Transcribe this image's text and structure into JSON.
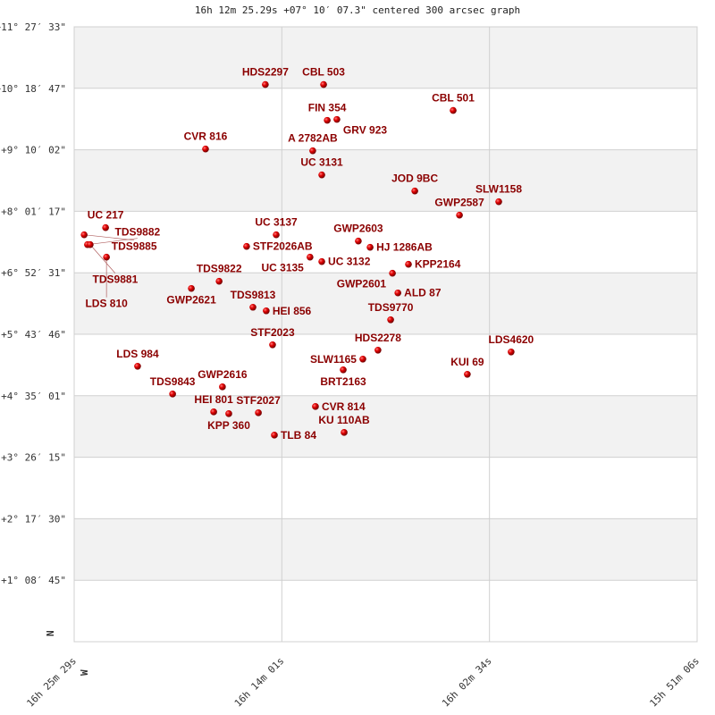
{
  "chart_data": {
    "type": "scatter",
    "title": "16h 12m 25.29s +07° 10′ 07.3\" centered 300 arcsec graph",
    "x_axis": {
      "ticks": [
        "16h 25m 29s",
        "16h 14m 01s",
        "16h 02m 34s",
        "15h 51m 06s"
      ],
      "range": [
        "16h25m29s",
        "15h51m06s"
      ],
      "direction_label": "W"
    },
    "y_axis": {
      "ticks": [
        "+11° 27′ 33\"",
        "+10° 18′ 47\"",
        "+9° 10′ 02\"",
        "+8° 01′ 17\"",
        "+6° 52′ 31\"",
        "+5° 43′ 46\"",
        "+4° 35′ 01\"",
        "+3° 26′ 15\"",
        "+2° 17′ 30\"",
        "+1° 08′ 45\""
      ],
      "range": [
        "+0°00'",
        "+11°27'33\""
      ],
      "direction_label": "N"
    },
    "grid": true,
    "colors": {
      "point": "#dd0000",
      "label": "#8b0000",
      "band": "#f2f2f2",
      "grid": "#d0d0d0"
    },
    "points": [
      {
        "name": "HDS2297",
        "ra": "16h14m56s",
        "dec": "+10°23'"
      },
      {
        "name": "CBL 503",
        "ra": "16h11m43s",
        "dec": "+10°23'"
      },
      {
        "name": "FIN 354",
        "ra": "16h11m31s",
        "dec": "+9°43'"
      },
      {
        "name": "GRV 923",
        "ra": "16h10m59s",
        "dec": "+9°44'"
      },
      {
        "name": "CBL 501",
        "ra": "16h04m34s",
        "dec": "+9°54'"
      },
      {
        "name": "CVR 816",
        "ra": "16h18m14s",
        "dec": "+9°11'"
      },
      {
        "name": "A 2782AB",
        "ra": "16h12m19s",
        "dec": "+9°09'"
      },
      {
        "name": "UC 3131",
        "ra": "16h11m49s",
        "dec": "+8°42'"
      },
      {
        "name": "JOD   9BC",
        "ra": "16h06m41s",
        "dec": "+8°24'"
      },
      {
        "name": "SLW1158",
        "ra": "16h02m03s",
        "dec": "+8°12'"
      },
      {
        "name": "GWP2587",
        "ra": "16h04m13s",
        "dec": "+7°57'"
      },
      {
        "name": "UC  217",
        "ra": "16h23m45s",
        "dec": "+7°43'"
      },
      {
        "name": "TDS9885",
        "ra": "16h24m56s",
        "dec": "+7°35'"
      },
      {
        "name": "TDS9882",
        "ra": "16h24m45s",
        "dec": "+7°24'"
      },
      {
        "name": "TDS9881",
        "ra": "16h24m36s",
        "dec": "+7°24'"
      },
      {
        "name": "LDS 810",
        "ra": "16h23m42s",
        "dec": "+7°10'"
      },
      {
        "name": "STF2026AB",
        "ra": "16h15m58s",
        "dec": "+7°22'"
      },
      {
        "name": "UC 3137",
        "ra": "16h14m20s",
        "dec": "+7°35'"
      },
      {
        "name": "GWP2603",
        "ra": "16h09m48s",
        "dec": "+7°28'"
      },
      {
        "name": "HJ 1286AB",
        "ra": "16h09m09s",
        "dec": "+7°21'"
      },
      {
        "name": "UC 3135",
        "ra": "16h12m28s",
        "dec": "+7°10'"
      },
      {
        "name": "UC 3132",
        "ra": "16h11m49s",
        "dec": "+7°05'"
      },
      {
        "name": "KPP2164",
        "ra": "16h07m02s",
        "dec": "+7°02'"
      },
      {
        "name": "GWP2601",
        "ra": "16h07m55s",
        "dec": "+6°52'"
      },
      {
        "name": "GWP2621",
        "ra": "16h19m01s",
        "dec": "+6°35'"
      },
      {
        "name": "TDS9822",
        "ra": "16h17m29s",
        "dec": "+6°43'"
      },
      {
        "name": "ALD  87",
        "ra": "16h07m37s",
        "dec": "+6°30'"
      },
      {
        "name": "TDS9813",
        "ra": "16h15m37s",
        "dec": "+6°14'"
      },
      {
        "name": "HEI 856",
        "ra": "16h14m53s",
        "dec": "+6°10'"
      },
      {
        "name": "TDS9770",
        "ra": "16h08m01s",
        "dec": "+6°00'"
      },
      {
        "name": "STF2023",
        "ra": "16h14m32s",
        "dec": "+5°32'"
      },
      {
        "name": "HDS2278",
        "ra": "16h08m43s",
        "dec": "+5°26'"
      },
      {
        "name": "SLW1165",
        "ra": "16h09m33s",
        "dec": "+5°16'"
      },
      {
        "name": "LDS4620",
        "ra": "16h01m22s",
        "dec": "+5°24'"
      },
      {
        "name": "LDS 984",
        "ra": "16h21m59s",
        "dec": "+5°08'"
      },
      {
        "name": "BRT2163",
        "ra": "16h10m38s",
        "dec": "+5°04'"
      },
      {
        "name": "KUI  69",
        "ra": "16h03m47s",
        "dec": "+4°59'"
      },
      {
        "name": "GWP2616",
        "ra": "16h17m18s",
        "dec": "+4°45'"
      },
      {
        "name": "TDS9843",
        "ra": "16h20m03s",
        "dec": "+4°37'"
      },
      {
        "name": "CVR 814",
        "ra": "16h12m10s",
        "dec": "+4°23'"
      },
      {
        "name": "HEI 801",
        "ra": "16h17m47s",
        "dec": "+4°17'"
      },
      {
        "name": "KPP 360",
        "ra": "16h16m57s",
        "dec": "+4°15'"
      },
      {
        "name": "STF2027",
        "ra": "16h15m19s",
        "dec": "+4°16'"
      },
      {
        "name": "TLB  84",
        "ra": "16h14m26s",
        "dec": "+3°51'"
      },
      {
        "name": "KU  110AB",
        "ra": "16h10m35s",
        "dec": "+3°54'"
      }
    ]
  }
}
